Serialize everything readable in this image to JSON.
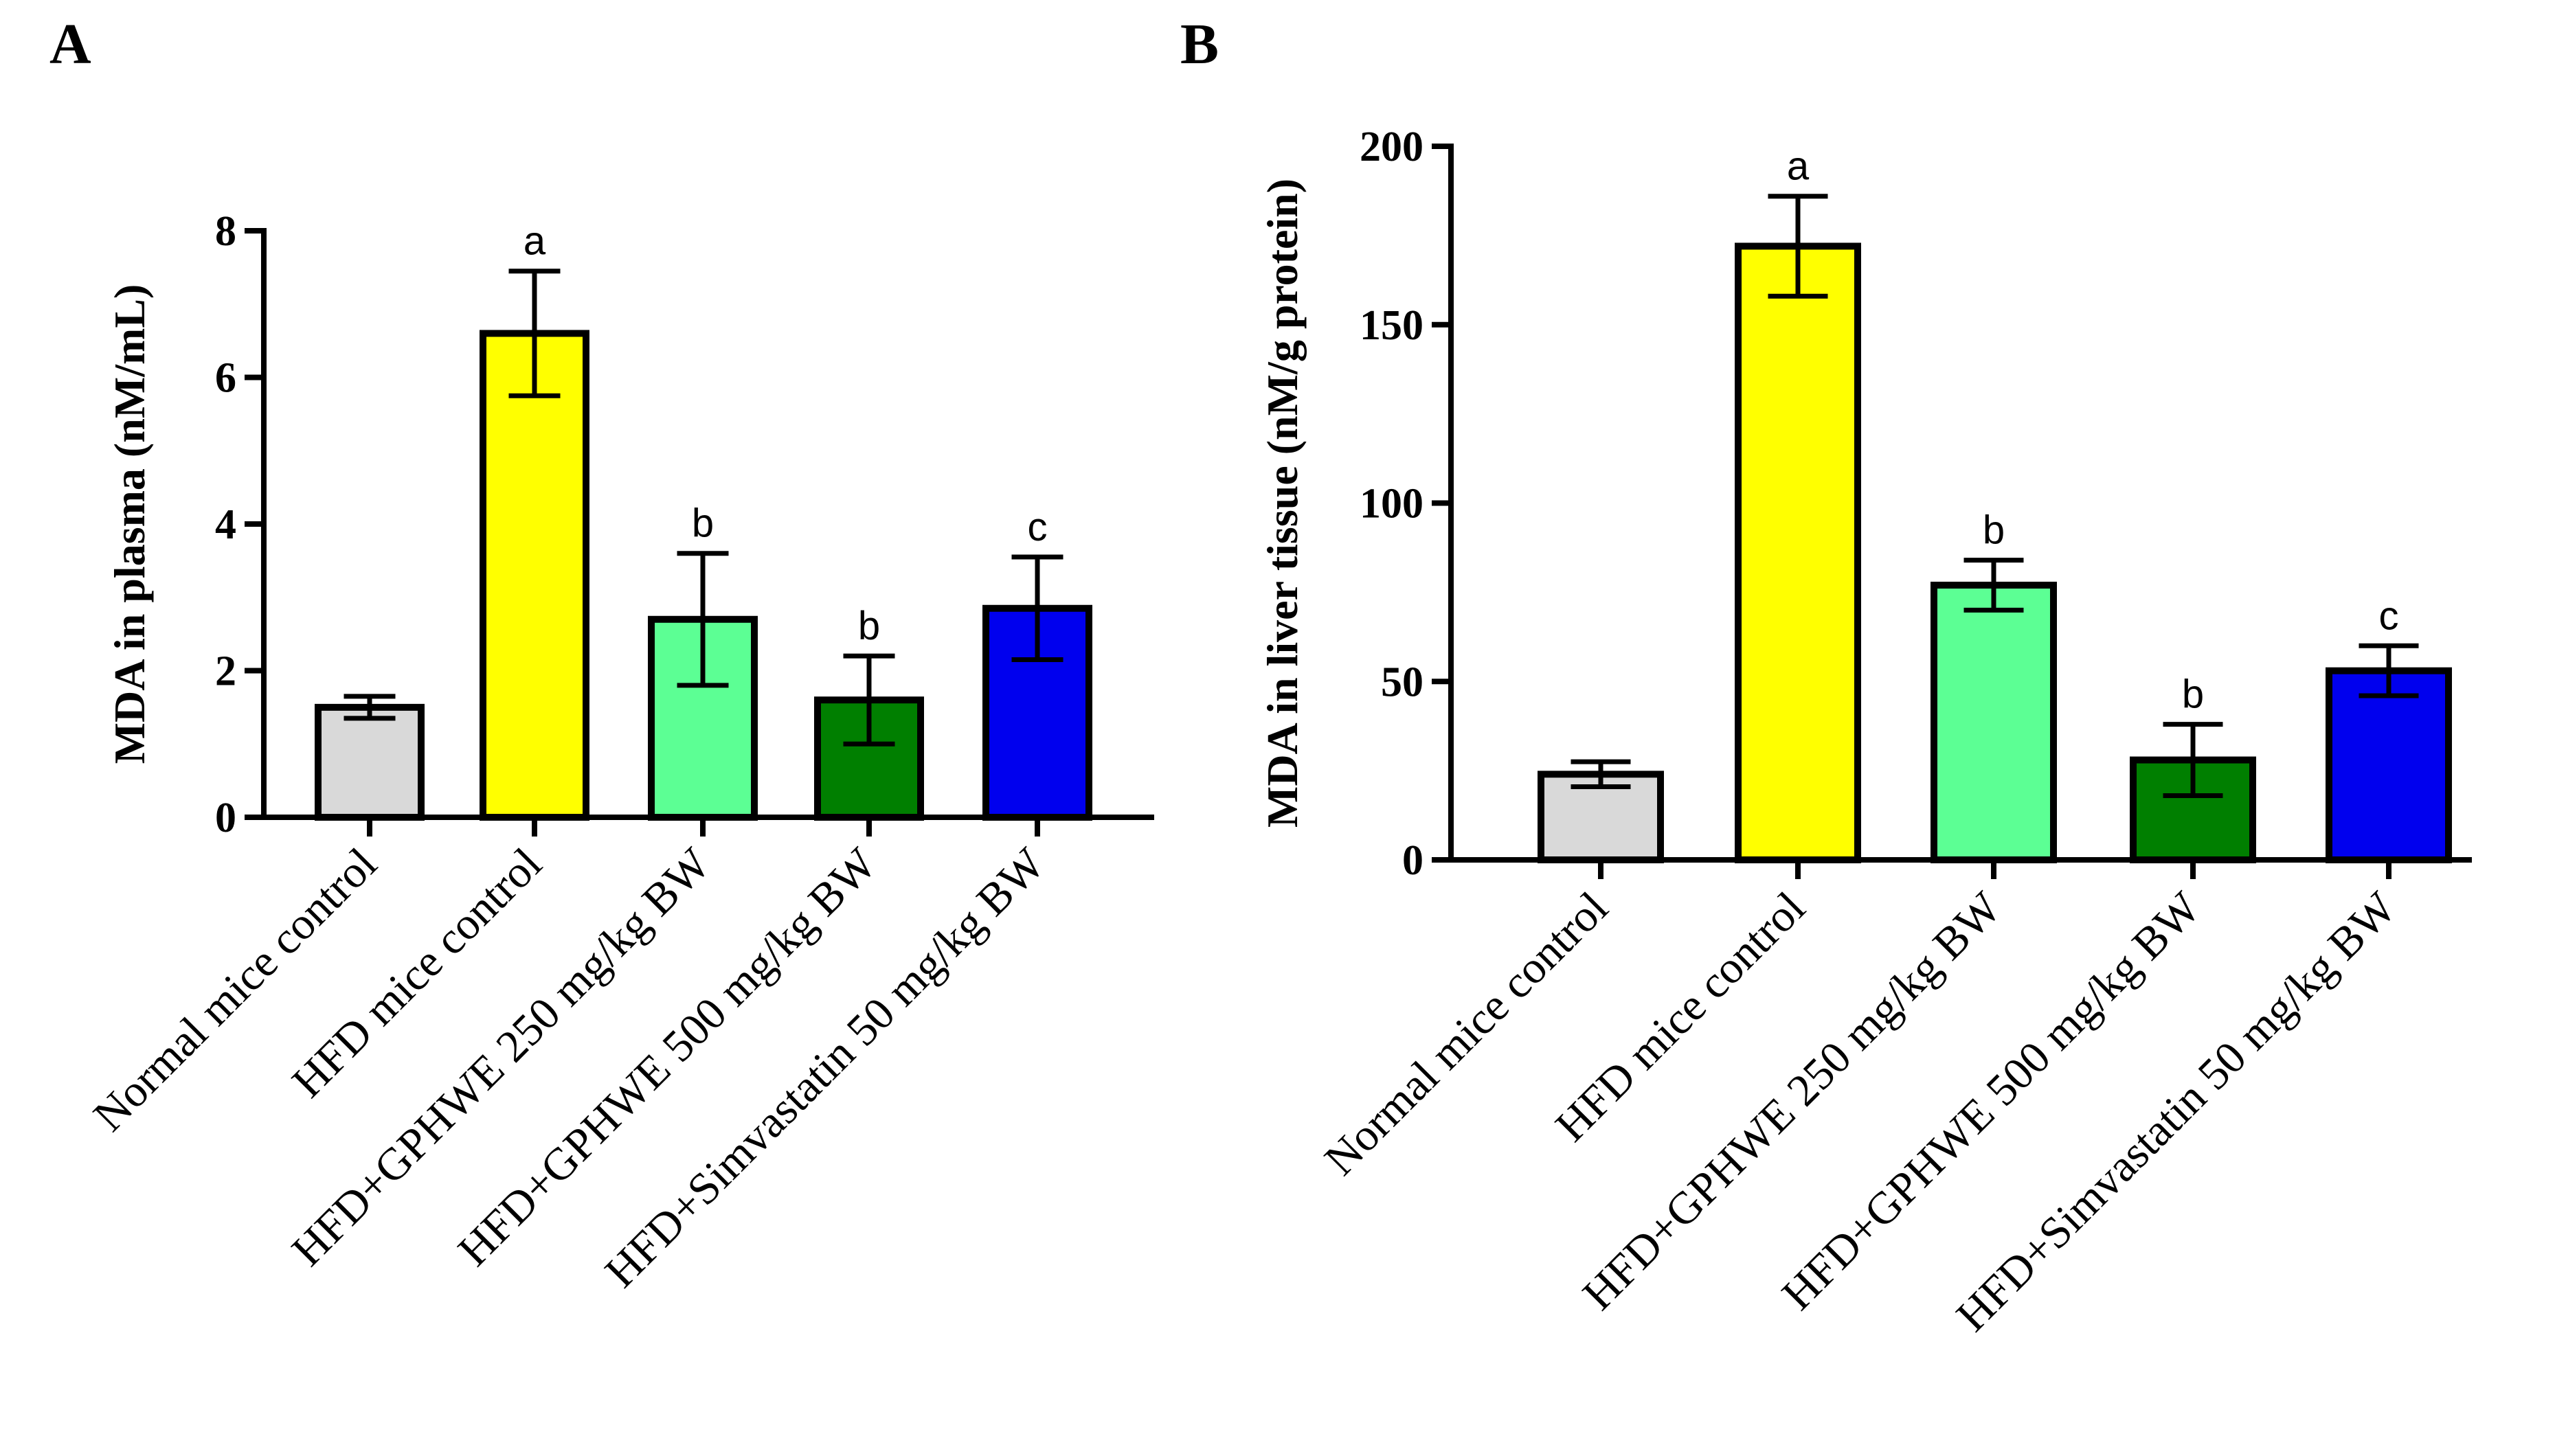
{
  "chart_data": [
    {
      "panel": "A",
      "type": "bar",
      "ylabel": "MDA in plasma (nM/mL)",
      "xlabel": "",
      "ylim": [
        0,
        8
      ],
      "yticks": [
        "0",
        "2",
        "4",
        "6",
        "8"
      ],
      "categories": [
        "Normal mice control",
        "HFD mice control",
        "HFD+GPHWE 250 mg/kg BW",
        "HFD+GPHWE 500 mg/kg BW",
        "HFD+Simvastatin 50 mg/kg BW"
      ],
      "values": [
        1.5,
        6.6,
        2.7,
        1.6,
        2.85
      ],
      "errors": [
        0.15,
        0.85,
        0.9,
        0.6,
        0.7
      ],
      "significance": [
        "",
        "a",
        "b",
        "b",
        "c"
      ],
      "colors": [
        "#d9d9d9",
        "#ffff00",
        "#5cff94",
        "#007f00",
        "#0000ee"
      ]
    },
    {
      "panel": "B",
      "type": "bar",
      "ylabel": "MDA in liver tissue (nM/g protein)",
      "xlabel": "",
      "ylim": [
        0,
        200
      ],
      "yticks": [
        "0",
        "50",
        "100",
        "150",
        "200"
      ],
      "categories": [
        "Normal mice control",
        "HFD mice control",
        "HFD+GPHWE 250 mg/kg BW",
        "HFD+GPHWE 500 mg/kg BW",
        "HFD+Simvastatin 50 mg/kg BW"
      ],
      "values": [
        24,
        172,
        77,
        28,
        53
      ],
      "errors": [
        3.5,
        14,
        7,
        10,
        7
      ],
      "significance": [
        "",
        "a",
        "b",
        "b",
        "c"
      ],
      "colors": [
        "#d9d9d9",
        "#ffff00",
        "#5cff94",
        "#007f00",
        "#0000ee"
      ]
    }
  ]
}
